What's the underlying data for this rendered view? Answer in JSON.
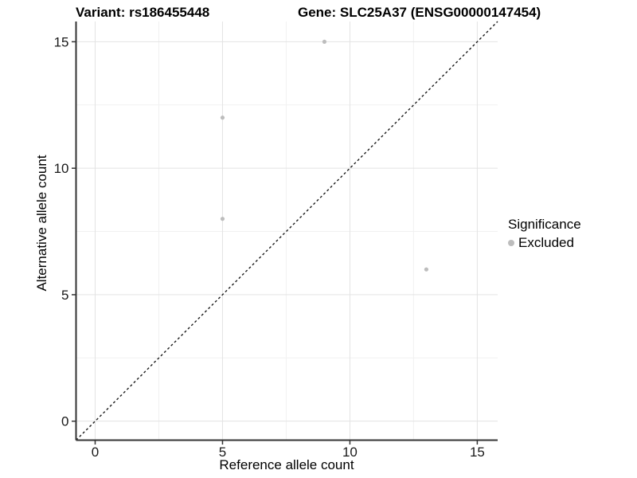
{
  "chart_data": {
    "type": "scatter",
    "title_left": "Variant: rs186455448",
    "title_right": "Gene: SLC25A37 (ENSG00000147454)",
    "xlabel": "Reference allele count",
    "ylabel": "Alternative allele count",
    "xlim": [
      -0.75,
      15.8
    ],
    "ylim": [
      -0.75,
      15.8
    ],
    "x_ticks": [
      0,
      5,
      10,
      15
    ],
    "y_ticks": [
      0,
      5,
      10,
      15
    ],
    "x_minor_ticks": [
      2.5,
      7.5,
      12.5
    ],
    "y_minor_ticks": [
      2.5,
      7.5,
      12.5
    ],
    "grid": true,
    "identity_line": {
      "style": "dashed",
      "equation": "y = x"
    },
    "series": [
      {
        "name": "Excluded",
        "color": "#bdbdbd",
        "points": [
          [
            9,
            15
          ],
          [
            5,
            12
          ],
          [
            5,
            8
          ],
          [
            13,
            6
          ]
        ]
      }
    ],
    "legend": {
      "title": "Significance",
      "position": "right",
      "entries": [
        {
          "label": "Excluded",
          "color": "#bdbdbd"
        }
      ]
    },
    "style": {
      "background": "#ffffff",
      "major_grid_color": "#e3e3e3",
      "minor_grid_color": "#f1f1f1",
      "axis_line_color": "#333333",
      "identity_line_color": "#1a1a1a",
      "point_color": "#bdbdbd",
      "point_radius": 2.6
    }
  }
}
